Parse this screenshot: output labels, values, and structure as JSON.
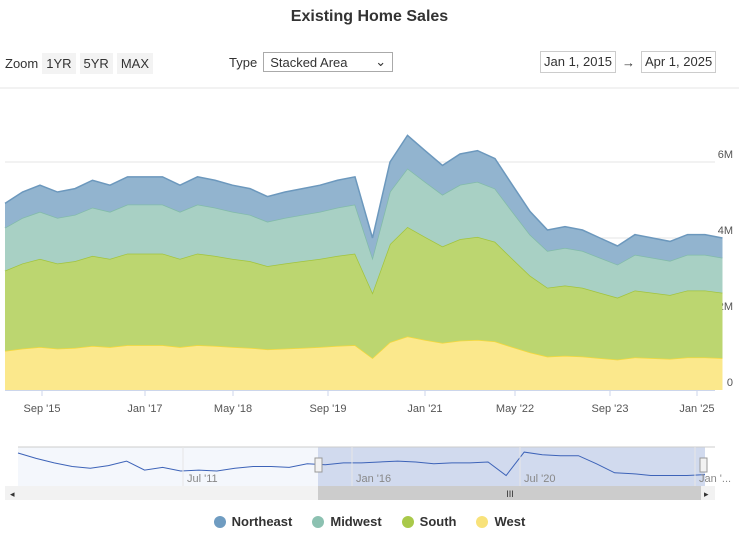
{
  "title": "Existing Home Sales",
  "controls": {
    "zoom_label": "Zoom",
    "zoom_buttons": [
      "1YR",
      "5YR",
      "MAX"
    ],
    "type_label": "Type",
    "type_value": "Stacked Area",
    "date_from": "Jan 1, 2015",
    "date_arrow": "→",
    "date_to": "Apr 1, 2025"
  },
  "chart_data": {
    "type": "area",
    "stacked": true,
    "title": "Existing Home Sales",
    "x_start": "2015-01",
    "x_interval_months": 3,
    "x_ticks": [
      "Sep '15",
      "Jan '17",
      "May '18",
      "Sep '19",
      "Jan '21",
      "May '22",
      "Sep '23",
      "Jan '25"
    ],
    "y_ticks": [
      "0",
      "2M",
      "4M",
      "6M"
    ],
    "ylim": [
      0,
      7000000
    ],
    "grid": true,
    "legend": "bottom-center",
    "series": [
      {
        "name": "West",
        "color": "#fbe88c",
        "line": "#f5d83a",
        "values": [
          1.03,
          1.09,
          1.13,
          1.09,
          1.11,
          1.16,
          1.13,
          1.18,
          1.18,
          1.18,
          1.13,
          1.18,
          1.16,
          1.13,
          1.11,
          1.07,
          1.09,
          1.11,
          1.13,
          1.16,
          1.18,
          0.84,
          1.26,
          1.41,
          1.32,
          1.24,
          1.3,
          1.32,
          1.28,
          1.13,
          0.99,
          0.88,
          0.9,
          0.88,
          0.84,
          0.8,
          0.86,
          0.84,
          0.82,
          0.86,
          0.86,
          0.84
        ]
      },
      {
        "name": "South",
        "color": "#bcd670",
        "line": "#a2c43c",
        "values": [
          2.11,
          2.24,
          2.32,
          2.24,
          2.28,
          2.37,
          2.32,
          2.41,
          2.41,
          2.41,
          2.32,
          2.41,
          2.37,
          2.32,
          2.28,
          2.19,
          2.24,
          2.28,
          2.32,
          2.37,
          2.41,
          1.72,
          2.58,
          2.88,
          2.71,
          2.54,
          2.67,
          2.71,
          2.62,
          2.32,
          2.02,
          1.81,
          1.85,
          1.81,
          1.72,
          1.63,
          1.76,
          1.72,
          1.68,
          1.76,
          1.76,
          1.72
        ]
      },
      {
        "name": "Midwest",
        "color": "#a8d0c4",
        "line": "#82bba9",
        "values": [
          1.13,
          1.2,
          1.24,
          1.2,
          1.22,
          1.27,
          1.24,
          1.29,
          1.29,
          1.29,
          1.24,
          1.29,
          1.27,
          1.24,
          1.22,
          1.17,
          1.2,
          1.22,
          1.24,
          1.27,
          1.29,
          0.92,
          1.38,
          1.54,
          1.45,
          1.36,
          1.43,
          1.45,
          1.4,
          1.24,
          1.08,
          0.97,
          0.99,
          0.97,
          0.92,
          0.87,
          0.94,
          0.92,
          0.9,
          0.94,
          0.94,
          0.92
        ]
      },
      {
        "name": "Northeast",
        "color": "#92b4cf",
        "line": "#6c98bd",
        "values": [
          0.64,
          0.68,
          0.7,
          0.68,
          0.69,
          0.72,
          0.7,
          0.73,
          0.73,
          0.73,
          0.7,
          0.73,
          0.72,
          0.7,
          0.69,
          0.66,
          0.68,
          0.69,
          0.7,
          0.72,
          0.73,
          0.52,
          0.78,
          0.87,
          0.82,
          0.77,
          0.81,
          0.82,
          0.79,
          0.7,
          0.61,
          0.55,
          0.56,
          0.55,
          0.52,
          0.49,
          0.53,
          0.52,
          0.51,
          0.53,
          0.53,
          0.52
        ]
      }
    ],
    "navigator": {
      "x_ticks": [
        "Jul '11",
        "Jan '16",
        "Jul '20",
        "Jan '..."
      ],
      "x_start": "2007-01",
      "x_interval_months": 6,
      "values": [
        6.5,
        5.9,
        5.4,
        5.0,
        4.8,
        5.1,
        5.6,
        4.6,
        4.9,
        4.5,
        4.6,
        4.5,
        4.8,
        5.0,
        5.0,
        4.9,
        5.3,
        5.2,
        5.4,
        5.4,
        5.5,
        5.6,
        5.5,
        5.3,
        5.4,
        5.4,
        5.5,
        4.0,
        6.6,
        6.3,
        6.2,
        6.2,
        5.3,
        4.3,
        4.2,
        4.0,
        4.0,
        4.0,
        4.1
      ],
      "selected_range": [
        "Jan 1, 2015",
        "Apr 1, 2025"
      ]
    }
  }
}
